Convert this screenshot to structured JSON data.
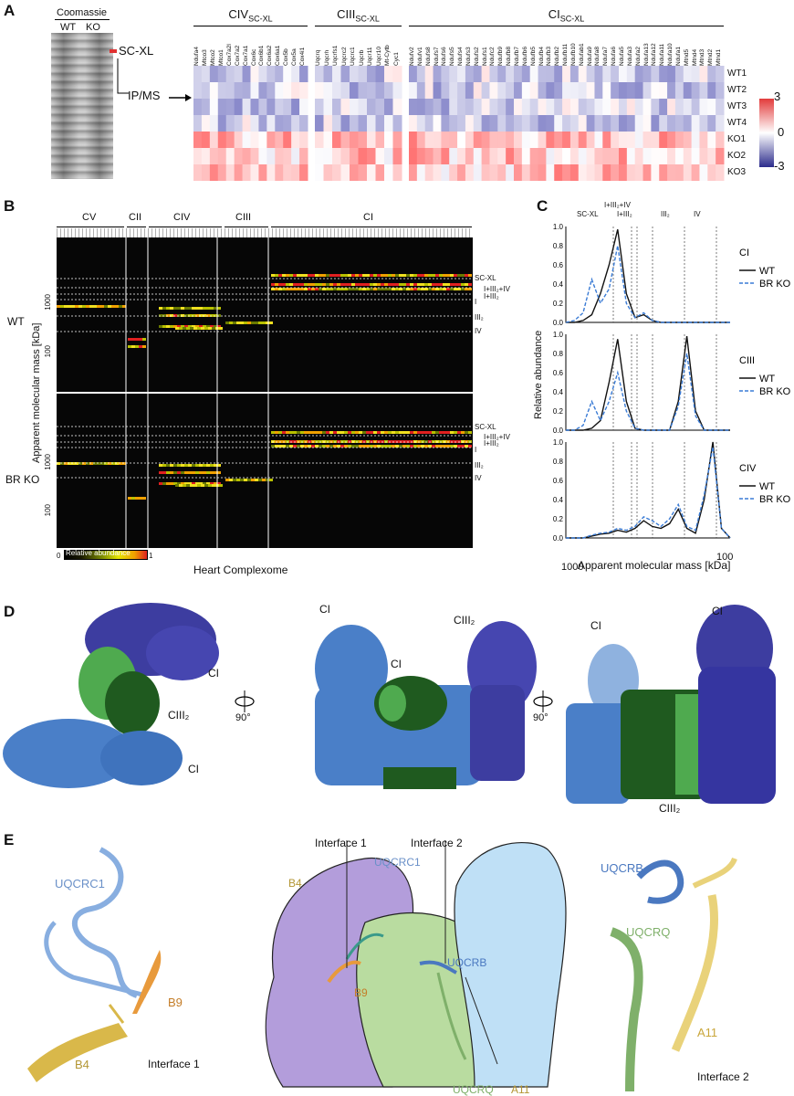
{
  "panels": {
    "A": "A",
    "B": "B",
    "C": "C",
    "D": "D",
    "E": "E"
  },
  "panelA": {
    "gel_title": "Coomassie",
    "lanes": [
      "WT",
      "KO"
    ],
    "gel_band_label": "SC-XL",
    "arrow_label": "IP/MS",
    "group_headers": [
      {
        "main": "CIV",
        "sub": "SC-XL"
      },
      {
        "main": "CIII",
        "sub": "SC-XL"
      },
      {
        "main": "CI",
        "sub": "SC-XL"
      }
    ],
    "rows": [
      "WT1",
      "WT2",
      "WT3",
      "WT4",
      "KO1",
      "KO2",
      "KO3"
    ],
    "colorbar": {
      "max": "3",
      "mid": "0",
      "min": "-3",
      "colors": {
        "high": "#e23b3b",
        "mid": "#ffffff",
        "low": "#2c2c8c"
      }
    },
    "col_labels": {
      "civ": [
        "Ndufa4",
        "Mtco3",
        "Mtco2",
        "Mtco1",
        "Cox7a2l",
        "Cox7a2",
        "Cox7a1",
        "Cox6c",
        "Cox6b1",
        "Cox6a2",
        "Cox6a1",
        "Cox5b",
        "Cox5a",
        "Cox4i1"
      ],
      "ciii": [
        "Uqcrq",
        "Uqcrh",
        "Uqcrfs1",
        "Uqcrc2",
        "Uqcrc1",
        "Uqcrb",
        "Uqcr11",
        "Uqcr10",
        "Mt-Cytb",
        "Cyc1"
      ],
      "ci": [
        "Ndufv2",
        "Ndufv1",
        "Ndufs8",
        "Ndufs7",
        "Ndufs6",
        "Ndufs5",
        "Ndufs4",
        "Ndufs3",
        "Ndufs2",
        "Ndufs1",
        "Ndufc2",
        "Ndufb9",
        "Ndufb8",
        "Ndufb7",
        "Ndufb6",
        "Ndufb5",
        "Ndufb4",
        "Ndufb3",
        "Ndufb2",
        "Ndufb11",
        "Ndufb10",
        "Ndufab1",
        "Ndufa9",
        "Ndufa8",
        "Ndufa7",
        "Ndufa6",
        "Ndufa5",
        "Ndufa3",
        "Ndufa2",
        "Ndufa13",
        "Ndufa12",
        "Ndufa11",
        "Ndufa10",
        "Ndufa1",
        "Mtnd5",
        "Mtnd4",
        "Mtnd3",
        "Mtnd2",
        "Mtnd1"
      ]
    }
  },
  "panelB": {
    "groups": [
      "CV",
      "CII",
      "CIV",
      "CIII",
      "CI"
    ],
    "rows": [
      "WT",
      "BR KO"
    ],
    "ylabel": "Apparent molecular mass [kDa]",
    "ticks": [
      "1000",
      "100"
    ],
    "markers": [
      "SC-XL",
      "I+III₂+IV",
      "I+III₂",
      "I",
      "III₂",
      "IV"
    ],
    "colorbar_title": "Relative abundance",
    "colorbar_min": "0",
    "colorbar_max": "1",
    "xlabel": "Heart Complexome"
  },
  "panelC": {
    "ylabel": "Relative abundance",
    "xlabel": "Apparent molecular mass [kDa]",
    "yticks": [
      "0.0",
      "0.2",
      "0.4",
      "0.6",
      "0.8",
      "1.0"
    ],
    "xticks": [
      "1000",
      "100"
    ],
    "top_markers": [
      "SC-XL",
      "I+III₂+IV",
      "I+III₂",
      "III₂",
      "IV"
    ],
    "legend": {
      "wt": "WT",
      "ko": "BR KO"
    },
    "colors": {
      "wt": "#111111",
      "ko": "#3a7bd5"
    }
  },
  "chart_data": [
    {
      "type": "line",
      "title": "CI",
      "ylim": [
        0,
        1
      ],
      "x": [
        1,
        2,
        3,
        4,
        5,
        6,
        7,
        8,
        9,
        10,
        11,
        12,
        13,
        14,
        15,
        16,
        17,
        18,
        19,
        20
      ],
      "series": [
        {
          "name": "WT",
          "values": [
            0,
            0,
            0.02,
            0.08,
            0.3,
            0.6,
            0.97,
            0.3,
            0.05,
            0.08,
            0.02,
            0,
            0,
            0,
            0,
            0,
            0,
            0,
            0,
            0
          ]
        },
        {
          "name": "BR KO",
          "values": [
            0,
            0.02,
            0.1,
            0.45,
            0.2,
            0.35,
            0.8,
            0.2,
            0.05,
            0.1,
            0.02,
            0,
            0,
            0,
            0,
            0,
            0,
            0,
            0,
            0
          ]
        }
      ]
    },
    {
      "type": "line",
      "title": "CIII",
      "ylim": [
        0,
        1
      ],
      "x": [
        1,
        2,
        3,
        4,
        5,
        6,
        7,
        8,
        9,
        10,
        11,
        12,
        13,
        14,
        15,
        16,
        17,
        18,
        19,
        20
      ],
      "series": [
        {
          "name": "WT",
          "values": [
            0,
            0,
            0,
            0.02,
            0.1,
            0.5,
            0.95,
            0.3,
            0.02,
            0,
            0,
            0,
            0,
            0.3,
            0.98,
            0.2,
            0,
            0,
            0,
            0
          ]
        },
        {
          "name": "BR KO",
          "values": [
            0,
            0,
            0.05,
            0.3,
            0.1,
            0.3,
            0.6,
            0.2,
            0.02,
            0,
            0,
            0,
            0,
            0.25,
            0.8,
            0.15,
            0,
            0,
            0,
            0
          ]
        }
      ]
    },
    {
      "type": "line",
      "title": "CIV",
      "ylim": [
        0,
        1
      ],
      "x": [
        1,
        2,
        3,
        4,
        5,
        6,
        7,
        8,
        9,
        10,
        11,
        12,
        13,
        14,
        15,
        16,
        17,
        18,
        19,
        20
      ],
      "series": [
        {
          "name": "WT",
          "values": [
            0,
            0,
            0,
            0.02,
            0.04,
            0.05,
            0.08,
            0.06,
            0.1,
            0.18,
            0.12,
            0.1,
            0.15,
            0.3,
            0.1,
            0.05,
            0.4,
            1.0,
            0.1,
            0
          ]
        },
        {
          "name": "BR KO",
          "values": [
            0,
            0,
            0,
            0.03,
            0.05,
            0.06,
            0.1,
            0.08,
            0.12,
            0.22,
            0.18,
            0.12,
            0.2,
            0.35,
            0.12,
            0.08,
            0.45,
            0.95,
            0.1,
            0
          ]
        }
      ]
    }
  ],
  "panelD": {
    "labels": [
      "CI",
      "CIII₂",
      "CI",
      "CI",
      "CIII₂",
      "CI",
      "CI",
      "CI",
      "CIII₂"
    ],
    "rotation": "90°",
    "colors": {
      "ci_light": "#4a7fc8",
      "ci_dark": "#3d3da0",
      "ciii_light": "#4faa4f",
      "ciii_dark": "#1f5a1f"
    }
  },
  "panelE": {
    "left": {
      "labels": [
        "UQCRC1",
        "B9",
        "B4"
      ],
      "caption": "Interface 1"
    },
    "middle": {
      "labels": [
        "Interface 1",
        "Interface 2",
        "UQCRC1",
        "B4",
        "B9",
        "UQCRB",
        "UQCRQ",
        "A11"
      ]
    },
    "right": {
      "labels": [
        "UQCRB",
        "UQCRQ",
        "A11"
      ],
      "caption": "Interface 2"
    },
    "colors": {
      "uqcrc1": "#88aee0",
      "b9": "#e89a3c",
      "b4": "#d9b84a",
      "purple": "#b39ddb",
      "green": "#b9dca0",
      "blue": "#bfe0f6",
      "uqcrb": "#4a78c0",
      "uqcrq": "#7fb06a",
      "a11": "#e9d27a"
    }
  }
}
